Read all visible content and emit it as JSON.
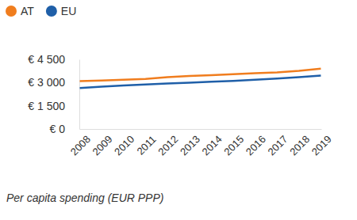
{
  "chart_data": {
    "type": "line",
    "title": "Per capita spending (EUR PPP)",
    "categories": [
      "2008",
      "2009",
      "2010",
      "2011",
      "2012",
      "2013",
      "2014",
      "2015",
      "2016",
      "2017",
      "2018",
      "2019"
    ],
    "series": [
      {
        "name": "AT",
        "color": "#f07d1e",
        "values": [
          3100,
          3130,
          3180,
          3230,
          3350,
          3420,
          3480,
          3540,
          3600,
          3660,
          3760,
          3900
        ]
      },
      {
        "name": "EU",
        "color": "#1f5fa8",
        "values": [
          2650,
          2730,
          2810,
          2880,
          2940,
          2990,
          3050,
          3110,
          3180,
          3260,
          3350,
          3450
        ]
      }
    ],
    "ylim": [
      0,
      4500
    ],
    "yticks": [
      {
        "value": 0,
        "label": "€ 0"
      },
      {
        "value": 1500,
        "label": "€ 1 500"
      },
      {
        "value": 3000,
        "label": "€ 3 000"
      },
      {
        "value": 4500,
        "label": "€ 4 500"
      }
    ],
    "grid": false,
    "legend": "top-left"
  }
}
